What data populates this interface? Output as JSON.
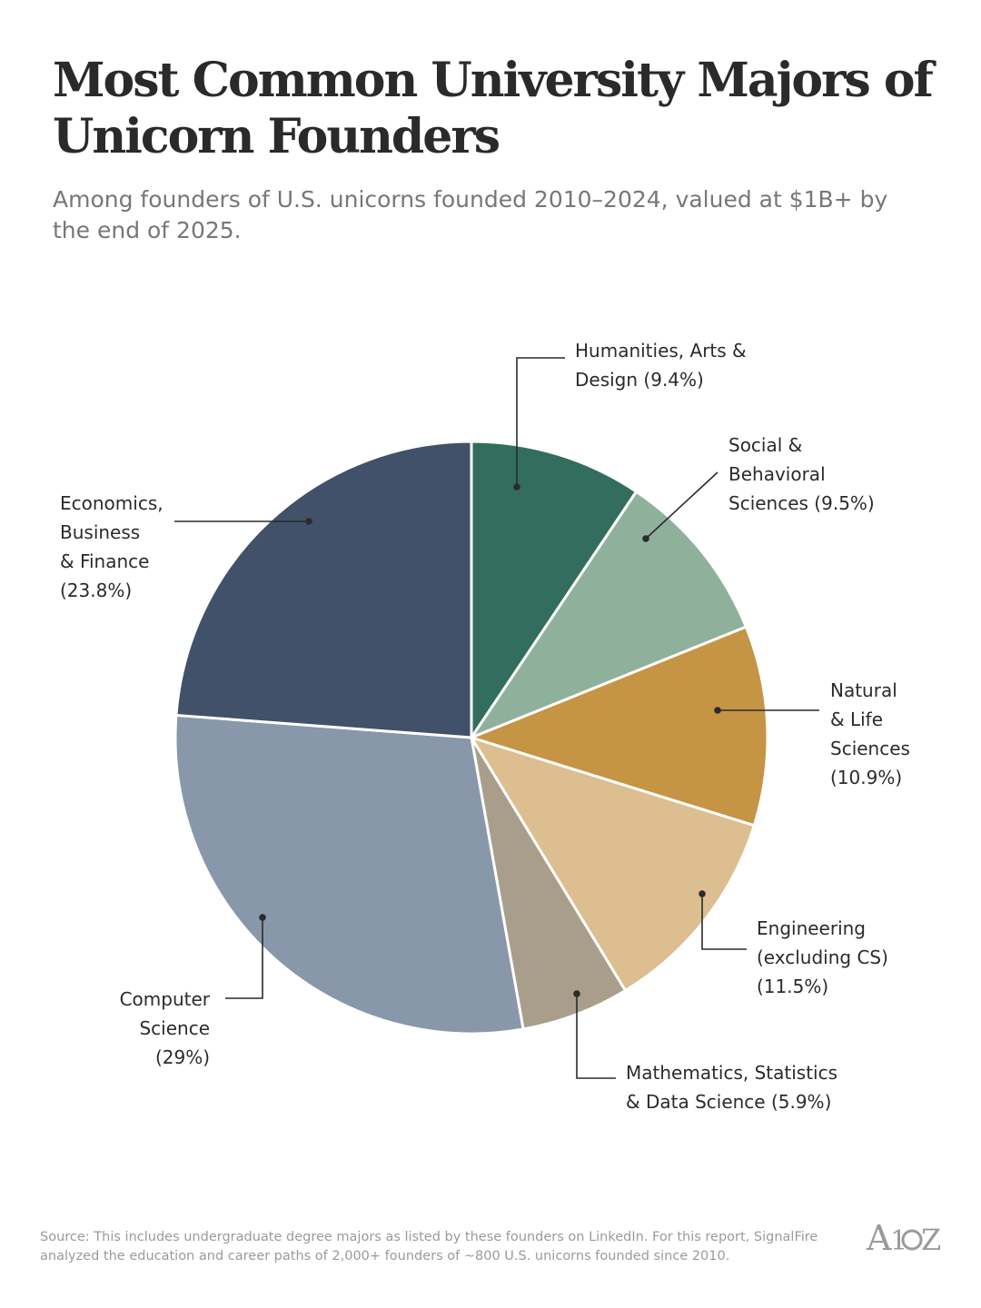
{
  "title": "Most Common University Majors of Unicorn Founders",
  "subtitle": "Among founders of U.S. unicorns founded 2010–2024, valued at $1B+ by the end of 2025.",
  "source": "Source: This includes undergraduate degree majors as listed by these founders on LinkedIn. For this report, SignalFire analyzed the education and career paths of 2,000+ founders of ~800 U.S. unicorns founded since 2010.",
  "logo_text": "A16Z",
  "chart_data": {
    "type": "pie",
    "title": "Most Common University Majors of Unicorn Founders",
    "slices": [
      {
        "name": "Humanities, Arts & Design",
        "value": 9.4,
        "color": "#336d5d",
        "label_lines": [
          "Humanities, Arts &",
          "Design (9.4%)"
        ]
      },
      {
        "name": "Social & Behavioral Sciences",
        "value": 9.5,
        "color": "#8fb19c",
        "label_lines": [
          "Social &",
          "Behavioral",
          "Sciences (9.5%)"
        ]
      },
      {
        "name": "Natural & Life Sciences",
        "value": 10.9,
        "color": "#c69445",
        "label_lines": [
          "Natural",
          "& Life",
          "Sciences",
          "(10.9%)"
        ]
      },
      {
        "name": "Engineering (excluding CS)",
        "value": 11.5,
        "color": "#dcbe90",
        "label_lines": [
          "Engineering",
          "(excluding CS)",
          "(11.5%)"
        ]
      },
      {
        "name": "Mathematics, Statistics & Data Science",
        "value": 5.9,
        "color": "#a99e8b",
        "label_lines": [
          "Mathematics, Statistics",
          "& Data Science (5.9%)"
        ]
      },
      {
        "name": "Computer Science",
        "value": 29,
        "color": "#8997aa",
        "label_lines": [
          "Computer",
          "Science",
          "(29%)"
        ]
      },
      {
        "name": "Economics, Business & Finance",
        "value": 23.8,
        "color": "#415169",
        "label_lines": [
          "Economics,",
          "Business",
          "& Finance",
          "(23.8%)"
        ]
      }
    ],
    "unit": "%",
    "start_angle": "top",
    "direction": "clockwise"
  }
}
